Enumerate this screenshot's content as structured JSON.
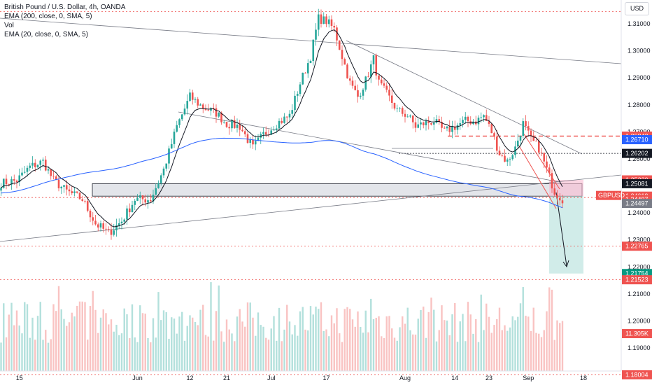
{
  "legend": {
    "title": "British Pound / U.S. Dollar, 4h, OANDA",
    "ema200": "EMA (200, close, 0, SMA, 5)",
    "vol": "Vol",
    "ema20": "EMA (20, close, 0, SMA, 5)"
  },
  "currency": "USD",
  "symbol_tag": "GBPUSD",
  "colors": {
    "up": "#26a69a",
    "down": "#ef5350",
    "ema200": "#2962ff",
    "ema20": "#131722",
    "zone": "#d1d4dc",
    "target": "#b2dfdb",
    "stop": "#f8bbd0"
  },
  "chart_data": {
    "type": "candlestick",
    "ylim": [
      1.1795,
      1.318
    ],
    "price_ticks": [
      "1.31000",
      "1.30000",
      "1.29000",
      "1.28000",
      "1.27000",
      "1.26000",
      "1.25000",
      "1.24000",
      "1.23000",
      "1.22000",
      "1.21000",
      "1.20000",
      "1.19000"
    ],
    "price_tick_values": [
      1.31,
      1.3,
      1.29,
      1.28,
      1.27,
      1.26,
      1.25,
      1.24,
      1.23,
      1.22,
      1.21,
      1.2,
      1.19
    ],
    "x_labels": [
      "15",
      "Jun",
      "12",
      "21",
      "Jul",
      "17",
      "Aug",
      "14",
      "23",
      "Sep",
      "18"
    ],
    "x_label_bars": [
      7,
      52,
      72,
      86,
      103,
      124,
      154,
      173,
      186,
      201,
      222
    ],
    "price_anchors": [
      [
        0,
        1.251
      ],
      [
        6,
        1.252
      ],
      [
        11,
        1.257
      ],
      [
        16,
        1.259
      ],
      [
        20,
        1.252
      ],
      [
        25,
        1.248
      ],
      [
        31,
        1.245
      ],
      [
        36,
        1.236
      ],
      [
        41,
        1.2325
      ],
      [
        46,
        1.237
      ],
      [
        51,
        1.245
      ],
      [
        57,
        1.245
      ],
      [
        62,
        1.256
      ],
      [
        67,
        1.272
      ],
      [
        72,
        1.283
      ],
      [
        77,
        1.279
      ],
      [
        82,
        1.277
      ],
      [
        86,
        1.273
      ],
      [
        91,
        1.272
      ],
      [
        96,
        1.264
      ],
      [
        100,
        1.269
      ],
      [
        105,
        1.273
      ],
      [
        110,
        1.276
      ],
      [
        114,
        1.288
      ],
      [
        118,
        1.298
      ],
      [
        121,
        1.312
      ],
      [
        124,
        1.311
      ],
      [
        127,
        1.308
      ],
      [
        130,
        1.298
      ],
      [
        133,
        1.288
      ],
      [
        136,
        1.283
      ],
      [
        139,
        1.289
      ],
      [
        142,
        1.297
      ],
      [
        144,
        1.288
      ],
      [
        147,
        1.284
      ],
      [
        151,
        1.278
      ],
      [
        155,
        1.276
      ],
      [
        158,
        1.272
      ],
      [
        161,
        1.273
      ],
      [
        165,
        1.274
      ],
      [
        169,
        1.27
      ],
      [
        173,
        1.272
      ],
      [
        177,
        1.274
      ],
      [
        181,
        1.274
      ],
      [
        184,
        1.276
      ],
      [
        187,
        1.27
      ],
      [
        190,
        1.262
      ],
      [
        193,
        1.259
      ],
      [
        196,
        1.264
      ],
      [
        199,
        1.273
      ],
      [
        202,
        1.267
      ],
      [
        205,
        1.264
      ],
      [
        208,
        1.256
      ],
      [
        211,
        1.248
      ],
      [
        214,
        1.245
      ]
    ],
    "last_bar": 214,
    "price_labels": [
      {
        "value": "1.26842",
        "y": 1.26842,
        "color": "#ef5350"
      },
      {
        "value": "1.26710",
        "y": 1.2671,
        "color": "#2962ff"
      },
      {
        "value": "1.26202",
        "y": 1.26202,
        "color": "#131722"
      },
      {
        "value": "1.25220",
        "y": 1.2522,
        "color": "#ef5350"
      },
      {
        "value": "1.25081",
        "y": 1.25081,
        "color": "#131722"
      },
      {
        "value": "1.24619",
        "y": 1.24619,
        "color": "#ef5350"
      },
      {
        "value": "1.24497",
        "y": 1.24497,
        "color": "#ef5350"
      },
      {
        "value": "1.24497",
        "y": 1.2435,
        "color": "#787b86"
      },
      {
        "value": "1.22765",
        "y": 1.22765,
        "color": "#ef5350"
      },
      {
        "value": "1.21754",
        "y": 1.21754,
        "color": "#089981"
      },
      {
        "value": "1.21523",
        "y": 1.21523,
        "color": "#ef5350"
      },
      {
        "value": "11.305K",
        "y": 1.1953,
        "color": "#ef5350"
      },
      {
        "value": "1.18004",
        "y": 1.18004,
        "color": "#ef5350"
      }
    ],
    "levels": {
      "resistance_dashed": 1.26842,
      "support_dotted": 1.26202,
      "zone_top": 1.25081,
      "zone_bottom": 1.24619,
      "top_dotted": 1.3145,
      "level_22765": 1.22765,
      "level_21523": 1.21523,
      "level_18004": 1.18004
    },
    "trade": {
      "entry": 1.24619,
      "stop": 1.2522,
      "target": 1.21754,
      "start_bar": 213,
      "end_bar": 226
    },
    "volume": {
      "series": "Vol",
      "max": 30,
      "last": "11.305K"
    }
  }
}
